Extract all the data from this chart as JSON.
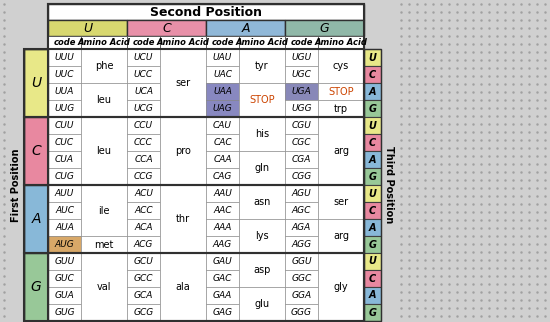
{
  "title": "Second Position",
  "first_position_label": "First Position",
  "third_position_label": "Third Position",
  "second_pos_bases": [
    "U",
    "C",
    "A",
    "G"
  ],
  "first_pos_bases": [
    "U",
    "C",
    "A",
    "G"
  ],
  "third_pos_bases": [
    "U",
    "C",
    "A",
    "G"
  ],
  "codons": {
    "U": {
      "U": [
        [
          "UUU",
          "phe"
        ],
        [
          "UUC",
          "phe"
        ],
        [
          "UUA",
          "leu"
        ],
        [
          "UUG",
          "leu"
        ]
      ],
      "C": [
        [
          "UCU",
          "ser"
        ],
        [
          "UCC",
          "ser"
        ],
        [
          "UCA",
          "ser"
        ],
        [
          "UCG",
          "ser"
        ]
      ],
      "A": [
        [
          "UAU",
          "tyr"
        ],
        [
          "UAC",
          "tyr"
        ],
        [
          "UAA",
          "STOP"
        ],
        [
          "UAG",
          "STOP"
        ]
      ],
      "G": [
        [
          "UGU",
          "cys"
        ],
        [
          "UGC",
          "cys"
        ],
        [
          "UGA",
          "STOP"
        ],
        [
          "UGG",
          "trp"
        ]
      ]
    },
    "C": {
      "U": [
        [
          "CUU",
          "leu"
        ],
        [
          "CUC",
          "leu"
        ],
        [
          "CUA",
          "leu"
        ],
        [
          "CUG",
          "leu"
        ]
      ],
      "C": [
        [
          "CCU",
          "pro"
        ],
        [
          "CCC",
          "pro"
        ],
        [
          "CCA",
          "pro"
        ],
        [
          "CCG",
          "pro"
        ]
      ],
      "A": [
        [
          "CAU",
          "his"
        ],
        [
          "CAC",
          "his"
        ],
        [
          "CAA",
          "gln"
        ],
        [
          "CAG",
          "gln"
        ]
      ],
      "G": [
        [
          "CGU",
          "arg"
        ],
        [
          "CGC",
          "arg"
        ],
        [
          "CGA",
          "arg"
        ],
        [
          "CGG",
          "arg"
        ]
      ]
    },
    "A": {
      "U": [
        [
          "AUU",
          "ile"
        ],
        [
          "AUC",
          "ile"
        ],
        [
          "AUA",
          "ile"
        ],
        [
          "AUG",
          "met"
        ]
      ],
      "C": [
        [
          "ACU",
          "thr"
        ],
        [
          "ACC",
          "thr"
        ],
        [
          "ACA",
          "thr"
        ],
        [
          "ACG",
          "thr"
        ]
      ],
      "A": [
        [
          "AAU",
          "asn"
        ],
        [
          "AAC",
          "asn"
        ],
        [
          "AAA",
          "lys"
        ],
        [
          "AAG",
          "lys"
        ]
      ],
      "G": [
        [
          "AGU",
          "ser"
        ],
        [
          "AGC",
          "ser"
        ],
        [
          "AGA",
          "arg"
        ],
        [
          "AGG",
          "arg"
        ]
      ]
    },
    "G": {
      "U": [
        [
          "GUU",
          "val"
        ],
        [
          "GUC",
          "val"
        ],
        [
          "GUA",
          "val"
        ],
        [
          "GUG",
          "val"
        ]
      ],
      "C": [
        [
          "GCU",
          "ala"
        ],
        [
          "GCC",
          "ala"
        ],
        [
          "GCA",
          "ala"
        ],
        [
          "GCG",
          "ala"
        ]
      ],
      "A": [
        [
          "GAU",
          "asp"
        ],
        [
          "GAC",
          "asp"
        ],
        [
          "GAA",
          "glu"
        ],
        [
          "GAG",
          "glu"
        ]
      ],
      "G": [
        [
          "GGU",
          "gly"
        ],
        [
          "GGC",
          "gly"
        ],
        [
          "GGA",
          "gly"
        ],
        [
          "GGG",
          "gly"
        ]
      ]
    }
  },
  "first_pos_colors": {
    "U": "#e8e888",
    "C": "#e888a0",
    "A": "#88b8d8",
    "G": "#98c898"
  },
  "second_pos_colors": {
    "U": "#d8d870",
    "C": "#e890a8",
    "A": "#90b8d8",
    "G": "#90b8a8"
  },
  "third_pos_colors": {
    "U": "#e8e888",
    "C": "#e888a0",
    "A": "#88b8d8",
    "G": "#98c898"
  },
  "stop_color": "#cc4400",
  "stop_bg_UAA": "#8888c0",
  "stop_bg_UAG": "#8888c0",
  "stop_bg_UGA": "#8888b8",
  "aug_bg": "#d8a868",
  "outer_dot_bg": "#d0d0d0",
  "table_bg": "#ffffff"
}
